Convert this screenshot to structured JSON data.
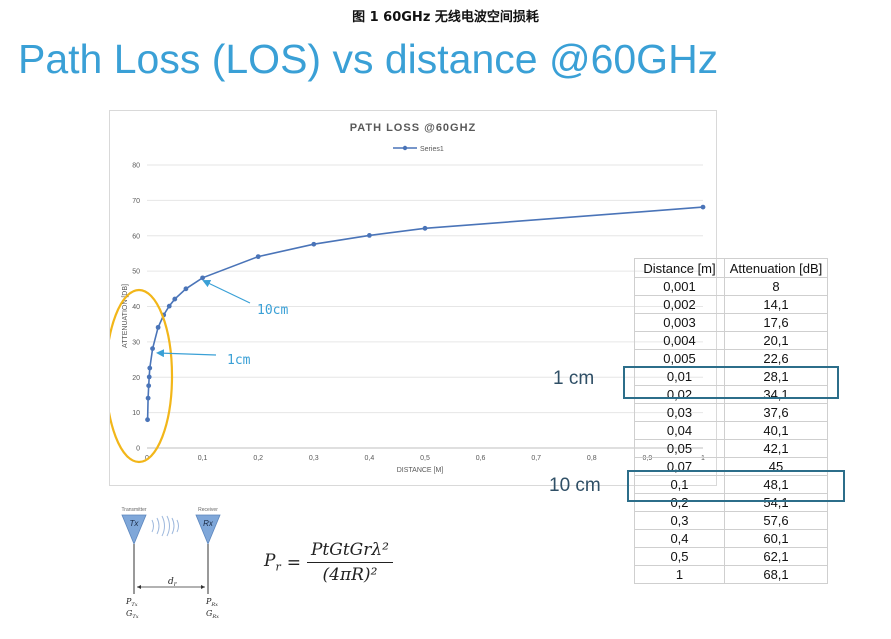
{
  "caption": "图 1 60GHz 无线电波空间损耗",
  "slide_title": "Path Loss (LOS) vs distance @60GHz",
  "chart_data": {
    "type": "line",
    "title": "PATH LOSS @60GHZ",
    "xlabel": "DISTANCE [M]",
    "ylabel": "ATTENUATION [DB]",
    "legend": "Series1",
    "legend_position": "top",
    "xlim": [
      0,
      1
    ],
    "ylim": [
      0,
      80
    ],
    "x_ticks": [
      "0",
      "0,1",
      "0,2",
      "0,3",
      "0,4",
      "0,5",
      "0,6",
      "0,7",
      "0,8",
      "0,9",
      "1"
    ],
    "y_ticks": [
      "0",
      "10",
      "20",
      "30",
      "40",
      "50",
      "60",
      "70",
      "80"
    ],
    "grid": "horizontal",
    "series_color": "#4a74b8",
    "series": [
      {
        "name": "Series1",
        "x": [
          0.001,
          0.002,
          0.003,
          0.004,
          0.005,
          0.01,
          0.02,
          0.03,
          0.04,
          0.05,
          0.07,
          0.1,
          0.2,
          0.3,
          0.4,
          0.5,
          1
        ],
        "values": [
          8,
          14.1,
          17.6,
          20.1,
          22.6,
          28.1,
          34.1,
          37.6,
          40.1,
          42.1,
          45,
          48.1,
          54.1,
          57.6,
          60.1,
          62.1,
          68.1
        ]
      }
    ],
    "annotations": [
      {
        "text": "10cm",
        "x": 0.1,
        "y": 48.1
      },
      {
        "text": "1cm",
        "x": 0.01,
        "y": 28.1
      }
    ],
    "ellipse_color": "#f2b619"
  },
  "table": {
    "headers": [
      "Distance [m]",
      "Attenuation [dB]"
    ],
    "rows": [
      [
        "0,001",
        "8"
      ],
      [
        "0,002",
        "14,1"
      ],
      [
        "0,003",
        "17,6"
      ],
      [
        "0,004",
        "20,1"
      ],
      [
        "0,005",
        "22,6"
      ],
      [
        "0,01",
        "28,1"
      ],
      [
        "0,02",
        "34,1"
      ],
      [
        "0,03",
        "37,6"
      ],
      [
        "0,04",
        "40,1"
      ],
      [
        "0,05",
        "42,1"
      ],
      [
        "0,07",
        "45"
      ],
      [
        "0,1",
        "48,1"
      ],
      [
        "0,2",
        "54,1"
      ],
      [
        "0,3",
        "57,6"
      ],
      [
        "0,4",
        "60,1"
      ],
      [
        "0,5",
        "62,1"
      ],
      [
        "1",
        "68,1"
      ]
    ]
  },
  "highlights": [
    {
      "label": "1 cm",
      "row": "0,01"
    },
    {
      "label": "10 cm",
      "row": "0,1"
    }
  ],
  "highlight_color": "#2c6e8a",
  "antenna": {
    "tx_caption": "Transmitter",
    "rx_caption": "Receiver",
    "tx": "Tx",
    "rx": "Rx",
    "distance_label": "d",
    "distance_sub": "r",
    "tx_power": "P",
    "tx_power_sub": "Tx",
    "tx_gain": "G",
    "tx_gain_sub": "Tx",
    "rx_power": "P",
    "rx_power_sub": "Rx",
    "rx_gain": "G",
    "rx_gain_sub": "Rx",
    "antenna_color": "#7fa7d9"
  },
  "formula": {
    "lhs": "P",
    "lhs_sub": "r",
    "equals": "=",
    "numerator": "PtGtGrλ²",
    "denominator": "(4πR)²"
  }
}
